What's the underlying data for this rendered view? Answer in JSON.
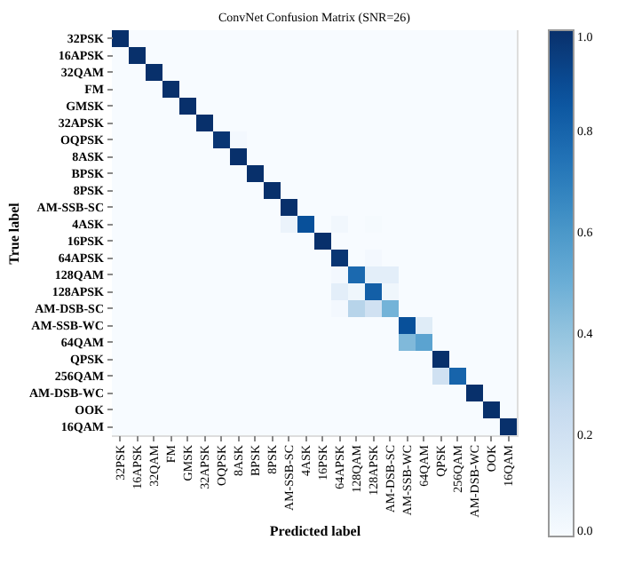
{
  "chart_data": {
    "type": "heatmap",
    "title": "ConvNet Confusion Matrix (SNR=26)",
    "xlabel": "Predicted label",
    "ylabel": "True label",
    "categories": [
      "32PSK",
      "16APSK",
      "32QAM",
      "FM",
      "GMSK",
      "32APSK",
      "OQPSK",
      "8ASK",
      "BPSK",
      "8PSK",
      "AM-SSB-SC",
      "4ASK",
      "16PSK",
      "64APSK",
      "128QAM",
      "128APSK",
      "AM-DSB-SC",
      "AM-SSB-WC",
      "64QAM",
      "QPSK",
      "256QAM",
      "AM-DSB-WC",
      "OOK",
      "16QAM"
    ],
    "y_categories": [
      "32PSK",
      "16APSK",
      "32QAM",
      "FM",
      "GMSK",
      "32APSK",
      "OQPSK",
      "8ASK",
      "BPSK",
      "8PSK",
      "AM-SSB-SC",
      "4ASK",
      "16PSK",
      "64APSK",
      "128QAM",
      "128APSK",
      "AM-DSB-SC",
      "AM-SSB-WC",
      "64QAM",
      "QPSK",
      "256QAM",
      "AM-DSB-WC",
      "OOK",
      "16QAM"
    ],
    "cells": [
      [
        1.0,
        0,
        0,
        0,
        0,
        0,
        0,
        0,
        0,
        0,
        0,
        0,
        0,
        0,
        0,
        0,
        0,
        0,
        0,
        0,
        0,
        0,
        0,
        0
      ],
      [
        0,
        1.0,
        0,
        0,
        0,
        0,
        0,
        0,
        0,
        0,
        0,
        0,
        0,
        0,
        0,
        0,
        0,
        0,
        0,
        0,
        0,
        0,
        0,
        0
      ],
      [
        0,
        0,
        1.0,
        0,
        0,
        0,
        0,
        0,
        0,
        0,
        0,
        0,
        0,
        0,
        0,
        0,
        0,
        0,
        0,
        0,
        0,
        0,
        0,
        0
      ],
      [
        0,
        0,
        0,
        1.0,
        0,
        0,
        0,
        0,
        0,
        0,
        0,
        0,
        0,
        0,
        0,
        0,
        0,
        0,
        0,
        0,
        0,
        0,
        0,
        0
      ],
      [
        0,
        0,
        0,
        0,
        1.0,
        0,
        0,
        0,
        0,
        0,
        0,
        0,
        0,
        0,
        0,
        0,
        0,
        0,
        0,
        0,
        0,
        0,
        0,
        0
      ],
      [
        0,
        0,
        0,
        0,
        0,
        1.0,
        0,
        0,
        0,
        0,
        0,
        0,
        0,
        0,
        0,
        0,
        0,
        0,
        0,
        0,
        0,
        0,
        0,
        0
      ],
      [
        0,
        0,
        0,
        0,
        0,
        0,
        0.98,
        0.02,
        0,
        0,
        0,
        0,
        0,
        0,
        0,
        0,
        0,
        0,
        0,
        0,
        0,
        0,
        0,
        0
      ],
      [
        0,
        0,
        0,
        0,
        0,
        0,
        0,
        1.0,
        0,
        0,
        0,
        0,
        0,
        0,
        0,
        0,
        0,
        0,
        0,
        0,
        0,
        0,
        0,
        0
      ],
      [
        0,
        0,
        0,
        0,
        0,
        0,
        0,
        0,
        1.0,
        0,
        0,
        0,
        0,
        0,
        0,
        0,
        0,
        0,
        0,
        0,
        0,
        0,
        0,
        0
      ],
      [
        0,
        0,
        0,
        0,
        0,
        0,
        0,
        0,
        0,
        1.0,
        0,
        0,
        0,
        0,
        0,
        0,
        0,
        0,
        0,
        0,
        0,
        0,
        0,
        0
      ],
      [
        0,
        0,
        0,
        0,
        0,
        0,
        0,
        0,
        0,
        0,
        1.0,
        0,
        0,
        0,
        0,
        0,
        0,
        0,
        0,
        0,
        0,
        0,
        0,
        0
      ],
      [
        0,
        0,
        0,
        0,
        0,
        0,
        0,
        0,
        0,
        0,
        0.06,
        0.88,
        0,
        0.03,
        0,
        0.01,
        0,
        0,
        0,
        0,
        0,
        0,
        0,
        0
      ],
      [
        0,
        0,
        0,
        0,
        0,
        0,
        0,
        0,
        0,
        0,
        0,
        0,
        1.0,
        0,
        0,
        0,
        0,
        0,
        0,
        0,
        0,
        0,
        0,
        0
      ],
      [
        0,
        0,
        0,
        0,
        0,
        0,
        0,
        0,
        0,
        0,
        0,
        0,
        0,
        0.98,
        0,
        0.02,
        0,
        0,
        0,
        0,
        0,
        0,
        0,
        0
      ],
      [
        0,
        0,
        0,
        0,
        0,
        0,
        0,
        0,
        0,
        0,
        0,
        0,
        0,
        0.02,
        0.78,
        0.1,
        0.1,
        0,
        0,
        0,
        0,
        0,
        0,
        0
      ],
      [
        0,
        0,
        0,
        0,
        0,
        0,
        0,
        0,
        0,
        0,
        0,
        0,
        0,
        0.1,
        0.04,
        0.82,
        0.04,
        0,
        0,
        0,
        0,
        0,
        0,
        0
      ],
      [
        0,
        0,
        0,
        0,
        0,
        0,
        0,
        0,
        0,
        0,
        0,
        0,
        0,
        0.02,
        0.3,
        0.2,
        0.48,
        0,
        0,
        0,
        0,
        0,
        0,
        0
      ],
      [
        0,
        0,
        0,
        0,
        0,
        0,
        0,
        0,
        0,
        0,
        0,
        0,
        0,
        0,
        0,
        0,
        0,
        0.88,
        0.12,
        0,
        0,
        0,
        0,
        0
      ],
      [
        0,
        0,
        0,
        0,
        0,
        0,
        0,
        0,
        0,
        0,
        0,
        0,
        0,
        0,
        0,
        0,
        0,
        0.45,
        0.55,
        0,
        0,
        0,
        0,
        0
      ],
      [
        0,
        0,
        0,
        0,
        0,
        0,
        0,
        0,
        0,
        0,
        0,
        0,
        0,
        0,
        0,
        0,
        0,
        0,
        0,
        1.0,
        0,
        0,
        0,
        0
      ],
      [
        0,
        0,
        0,
        0,
        0,
        0,
        0,
        0,
        0,
        0,
        0,
        0,
        0,
        0,
        0,
        0,
        0,
        0,
        0,
        0.2,
        0.8,
        0,
        0,
        0
      ],
      [
        0,
        0,
        0,
        0,
        0,
        0,
        0,
        0,
        0,
        0,
        0,
        0,
        0,
        0,
        0,
        0,
        0,
        0,
        0,
        0,
        0,
        1.0,
        0,
        0
      ],
      [
        0,
        0,
        0,
        0,
        0,
        0,
        0,
        0,
        0,
        0,
        0,
        0,
        0,
        0,
        0,
        0,
        0,
        0,
        0,
        0,
        0,
        0,
        1.0,
        0
      ],
      [
        0,
        0,
        0,
        0,
        0,
        0,
        0,
        0,
        0,
        0,
        0,
        0,
        0,
        0,
        0,
        0,
        0,
        0,
        0,
        0,
        0,
        0,
        0,
        1.0
      ]
    ],
    "clim": [
      0.0,
      1.0
    ],
    "cticks": [
      {
        "value": 0.0,
        "label": "0.0"
      },
      {
        "value": 0.2,
        "label": "0.2"
      },
      {
        "value": 0.4,
        "label": "0.4"
      },
      {
        "value": 0.6,
        "label": "0.6"
      },
      {
        "value": 0.8,
        "label": "0.8"
      },
      {
        "value": 1.0,
        "label": "1.0"
      }
    ],
    "grid": false
  }
}
